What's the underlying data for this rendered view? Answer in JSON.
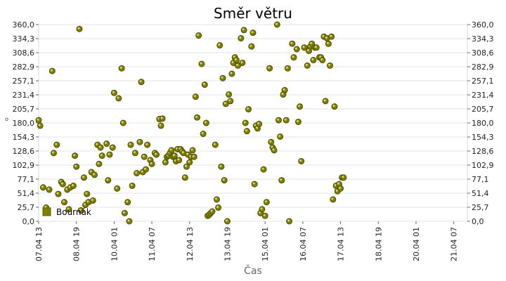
{
  "chart_data": {
    "type": "scatter",
    "title": "Směr větru",
    "xlabel": "Čas",
    "ylabel": "°",
    "ylim": [
      0,
      360
    ],
    "y_ticks": [
      "0,0",
      "25,7",
      "51,4",
      "77,1",
      "102,9",
      "128,6",
      "154,3",
      "180,0",
      "205,7",
      "231,4",
      "257,1",
      "282,9",
      "308,6",
      "334,3",
      "360,0"
    ],
    "x_range": [
      0,
      14.2
    ],
    "x_ticks": [
      {
        "x": 0.0,
        "label": "07.04 13"
      },
      {
        "x": 1.25,
        "label": "08.04 19"
      },
      {
        "x": 2.5,
        "label": "10.04 01"
      },
      {
        "x": 3.75,
        "label": "11.04 07"
      },
      {
        "x": 5.0,
        "label": "12.04 13"
      },
      {
        "x": 6.25,
        "label": "13.04 19"
      },
      {
        "x": 7.5,
        "label": "15.04 01"
      },
      {
        "x": 8.75,
        "label": "16.04 07"
      },
      {
        "x": 10.0,
        "label": "17.04 13"
      },
      {
        "x": 11.25,
        "label": "18.04 19"
      },
      {
        "x": 12.5,
        "label": "20.04 01"
      },
      {
        "x": 13.75,
        "label": "21.04 07"
      }
    ],
    "grid": true,
    "legend_position": "bottom-left",
    "series": [
      {
        "name": "Bournák",
        "color": "#808000",
        "points": [
          [
            0.0,
            185
          ],
          [
            0.05,
            175
          ],
          [
            0.15,
            62
          ],
          [
            0.25,
            25
          ],
          [
            0.35,
            58
          ],
          [
            0.45,
            275
          ],
          [
            0.5,
            125
          ],
          [
            0.6,
            140
          ],
          [
            0.65,
            50
          ],
          [
            0.75,
            72
          ],
          [
            0.8,
            68
          ],
          [
            0.85,
            35
          ],
          [
            0.95,
            58
          ],
          [
            1.0,
            22
          ],
          [
            1.05,
            62
          ],
          [
            1.15,
            65
          ],
          [
            1.2,
            120
          ],
          [
            1.25,
            100
          ],
          [
            1.35,
            352
          ],
          [
            1.4,
            20
          ],
          [
            1.5,
            80
          ],
          [
            1.55,
            30
          ],
          [
            1.6,
            50
          ],
          [
            1.65,
            35
          ],
          [
            1.75,
            90
          ],
          [
            1.8,
            38
          ],
          [
            1.85,
            85
          ],
          [
            1.95,
            140
          ],
          [
            2.0,
            105
          ],
          [
            2.05,
            135
          ],
          [
            2.1,
            120
          ],
          [
            2.25,
            142
          ],
          [
            2.3,
            75
          ],
          [
            2.35,
            122
          ],
          [
            2.45,
            135
          ],
          [
            2.5,
            235
          ],
          [
            2.6,
            60
          ],
          [
            2.65,
            225
          ],
          [
            2.75,
            280
          ],
          [
            2.8,
            180
          ],
          [
            2.85,
            15
          ],
          [
            2.95,
            35
          ],
          [
            3.0,
            0
          ],
          [
            3.05,
            140
          ],
          [
            3.1,
            65
          ],
          [
            3.2,
            125
          ],
          [
            3.25,
            88
          ],
          [
            3.35,
            145
          ],
          [
            3.4,
            255
          ],
          [
            3.45,
            90
          ],
          [
            3.5,
            118
          ],
          [
            3.55,
            95
          ],
          [
            3.6,
            140
          ],
          [
            3.7,
            112
          ],
          [
            3.75,
            105
          ],
          [
            3.85,
            125
          ],
          [
            3.9,
            122
          ],
          [
            4.0,
            187
          ],
          [
            4.05,
            175
          ],
          [
            4.1,
            188
          ],
          [
            4.2,
            108
          ],
          [
            4.25,
            118
          ],
          [
            4.3,
            120
          ],
          [
            4.35,
            125
          ],
          [
            4.4,
            130
          ],
          [
            4.45,
            118
          ],
          [
            4.5,
            120
          ],
          [
            4.55,
            110
          ],
          [
            4.6,
            132
          ],
          [
            4.65,
            112
          ],
          [
            4.7,
            132
          ],
          [
            4.75,
            128
          ],
          [
            4.8,
            125
          ],
          [
            4.85,
            80
          ],
          [
            4.9,
            100
          ],
          [
            4.95,
            122
          ],
          [
            5.0,
            108
          ],
          [
            5.05,
            118
          ],
          [
            5.1,
            130
          ],
          [
            5.15,
            118
          ],
          [
            5.2,
            228
          ],
          [
            5.25,
            190
          ],
          [
            5.3,
            340
          ],
          [
            5.4,
            288
          ],
          [
            5.45,
            160
          ],
          [
            5.5,
            250
          ],
          [
            5.55,
            180
          ],
          [
            5.6,
            10
          ],
          [
            5.65,
            12
          ],
          [
            5.7,
            15
          ],
          [
            5.75,
            18
          ],
          [
            5.85,
            140
          ],
          [
            5.9,
            40
          ],
          [
            5.95,
            25
          ],
          [
            6.0,
            322
          ],
          [
            6.05,
            100
          ],
          [
            6.1,
            262
          ],
          [
            6.15,
            75
          ],
          [
            6.2,
            215
          ],
          [
            6.25,
            0
          ],
          [
            6.3,
            232
          ],
          [
            6.35,
            220
          ],
          [
            6.4,
            270
          ],
          [
            6.45,
            290
          ],
          [
            6.5,
            300
          ],
          [
            6.55,
            295
          ],
          [
            6.6,
            285
          ],
          [
            6.7,
            335
          ],
          [
            6.75,
            290
          ],
          [
            6.8,
            350
          ],
          [
            6.85,
            180
          ],
          [
            6.9,
            165
          ],
          [
            6.95,
            205
          ],
          [
            7.05,
            320
          ],
          [
            7.1,
            345
          ],
          [
            7.15,
            68
          ],
          [
            7.2,
            175
          ],
          [
            7.25,
            170
          ],
          [
            7.3,
            178
          ],
          [
            7.35,
            15
          ],
          [
            7.4,
            22
          ],
          [
            7.45,
            95
          ],
          [
            7.5,
            10
          ],
          [
            7.55,
            35
          ],
          [
            7.65,
            280
          ],
          [
            7.7,
            145
          ],
          [
            7.75,
            135
          ],
          [
            7.8,
            130
          ],
          [
            7.9,
            362
          ],
          [
            7.95,
            185
          ],
          [
            8.0,
            155
          ],
          [
            8.05,
            75
          ],
          [
            8.1,
            232
          ],
          [
            8.15,
            240
          ],
          [
            8.2,
            185
          ],
          [
            8.25,
            280
          ],
          [
            8.3,
            0
          ],
          [
            8.4,
            325
          ],
          [
            8.45,
            300
          ],
          [
            8.55,
            315
          ],
          [
            8.6,
            182
          ],
          [
            8.65,
            210
          ],
          [
            8.7,
            110
          ],
          [
            8.8,
            318
          ],
          [
            8.9,
            285
          ],
          [
            8.95,
            312
          ],
          [
            9.0,
            320
          ],
          [
            9.05,
            325
          ],
          [
            9.1,
            295
          ],
          [
            9.15,
            318
          ],
          [
            9.2,
            318
          ],
          [
            9.3,
            300
          ],
          [
            9.35,
            300
          ],
          [
            9.4,
            295
          ],
          [
            9.45,
            338
          ],
          [
            9.5,
            220
          ],
          [
            9.55,
            335
          ],
          [
            9.6,
            325
          ],
          [
            9.65,
            285
          ],
          [
            9.7,
            338
          ],
          [
            9.75,
            40
          ],
          [
            9.8,
            210
          ],
          [
            9.85,
            65
          ],
          [
            9.9,
            55
          ],
          [
            9.95,
            68
          ],
          [
            10.0,
            60
          ],
          [
            10.05,
            80
          ],
          [
            10.1,
            80
          ]
        ]
      }
    ]
  }
}
